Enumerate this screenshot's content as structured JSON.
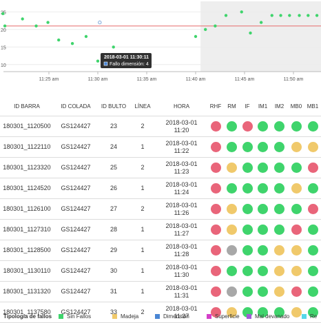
{
  "colors": {
    "green": "#3fd46c",
    "red": "#e9657a",
    "yellow": "#f0c96b",
    "gray": "#a8a8a8",
    "blue": "#4a86d4",
    "magenta": "#d43fc9",
    "purple": "#a25ad8",
    "cyan": "#57d8e8",
    "threshold": "#e66a6a",
    "shade": "#eeeeee"
  },
  "chart_data": {
    "type": "scatter",
    "x_ticks": [
      "11:25 am",
      "11:30 am",
      "11:35 am",
      "11:40 am",
      "11:45 am",
      "11:50 am"
    ],
    "y_ticks": [
      "25",
      "20",
      "15",
      "10"
    ],
    "y_range": [
      8,
      28
    ],
    "threshold": 21,
    "shaded_from_minute": 40.5,
    "points": [
      {
        "minute": 20.3,
        "value": 24.5
      },
      {
        "minute": 20.5,
        "value": 21
      },
      {
        "minute": 22.3,
        "value": 23
      },
      {
        "minute": 23.7,
        "value": 21
      },
      {
        "minute": 24.9,
        "value": 22
      },
      {
        "minute": 26.0,
        "value": 17
      },
      {
        "minute": 27.4,
        "value": 16
      },
      {
        "minute": 28.8,
        "value": 18
      },
      {
        "minute": 30.2,
        "value": 22,
        "hollow": true
      },
      {
        "minute": 31.6,
        "value": 15
      },
      {
        "minute": 30.0,
        "value": 11
      },
      {
        "minute": 40.0,
        "value": 18
      },
      {
        "minute": 41.0,
        "value": 20
      },
      {
        "minute": 42.0,
        "value": 21
      },
      {
        "minute": 43.1,
        "value": 24
      },
      {
        "minute": 44.7,
        "value": 25
      },
      {
        "minute": 45.6,
        "value": 19
      },
      {
        "minute": 46.7,
        "value": 22
      },
      {
        "minute": 47.8,
        "value": 24
      },
      {
        "minute": 48.7,
        "value": 24
      },
      {
        "minute": 49.6,
        "value": 24
      },
      {
        "minute": 50.6,
        "value": 24
      },
      {
        "minute": 51.5,
        "value": 24
      },
      {
        "minute": 52.4,
        "value": 24
      }
    ],
    "tooltip": {
      "title": "2018-03-01 11:30:11",
      "label": "Fallo dimensión: 4"
    }
  },
  "table": {
    "headers": [
      "ID BARRA",
      "ID COLADA",
      "ID BULTO",
      "LÍNEA",
      "HORA",
      "RHF",
      "RM",
      "IF",
      "IM1",
      "IM2",
      "MB0",
      "MB1"
    ],
    "rows": [
      {
        "barra": "180301_1120500",
        "colada": "GS124427",
        "bulto": "23",
        "linea": "2",
        "fecha": "2018-03-01",
        "hora": "11:20",
        "status": [
          "red",
          "green",
          "red",
          "green",
          "green",
          "green",
          "green"
        ]
      },
      {
        "barra": "180301_1122110",
        "colada": "GS124427",
        "bulto": "24",
        "linea": "1",
        "fecha": "2018-03-01",
        "hora": "11:22",
        "status": [
          "red",
          "green",
          "green",
          "green",
          "green",
          "yellow",
          "yellow"
        ]
      },
      {
        "barra": "180301_1123320",
        "colada": "GS124427",
        "bulto": "25",
        "linea": "2",
        "fecha": "2018-03-01",
        "hora": "11:23",
        "status": [
          "red",
          "yellow",
          "green",
          "green",
          "green",
          "green",
          "red"
        ]
      },
      {
        "barra": "180301_1124520",
        "colada": "GS124427",
        "bulto": "26",
        "linea": "1",
        "fecha": "2018-03-01",
        "hora": "11:24",
        "status": [
          "red",
          "green",
          "green",
          "green",
          "green",
          "yellow",
          "green"
        ]
      },
      {
        "barra": "180301_1126100",
        "colada": "GS124427",
        "bulto": "27",
        "linea": "2",
        "fecha": "2018-03-01",
        "hora": "11:26",
        "status": [
          "red",
          "yellow",
          "green",
          "green",
          "green",
          "green",
          "red"
        ]
      },
      {
        "barra": "180301_1127310",
        "colada": "GS124427",
        "bulto": "28",
        "linea": "1",
        "fecha": "2018-03-01",
        "hora": "11:27",
        "status": [
          "red",
          "yellow",
          "green",
          "green",
          "green",
          "red",
          "green"
        ]
      },
      {
        "barra": "180301_1128500",
        "colada": "GS124427",
        "bulto": "29",
        "linea": "1",
        "fecha": "2018-03-01",
        "hora": "11:28",
        "status": [
          "red",
          "gray",
          "green",
          "green",
          "yellow",
          "yellow",
          "green"
        ]
      },
      {
        "barra": "180301_1130110",
        "colada": "GS124427",
        "bulto": "30",
        "linea": "1",
        "fecha": "2018-03-01",
        "hora": "11:30",
        "status": [
          "red",
          "green",
          "green",
          "green",
          "yellow",
          "yellow",
          "green"
        ]
      },
      {
        "barra": "180301_1131320",
        "colada": "GS124427",
        "bulto": "31",
        "linea": "1",
        "fecha": "2018-03-01",
        "hora": "11:31",
        "status": [
          "red",
          "gray",
          "green",
          "green",
          "yellow",
          "red",
          "green"
        ]
      },
      {
        "barra": "180301_1137580",
        "colada": "GS124427",
        "bulto": "33",
        "linea": "2",
        "fecha": "2018-03-01",
        "hora": "11:37",
        "status": [
          "red",
          "yellow",
          "green",
          "green",
          "green",
          "yellow",
          "green"
        ]
      }
    ]
  },
  "legend": {
    "title": "Tipología de fallos",
    "items": [
      {
        "label": "Sin Fallos",
        "color": "green"
      },
      {
        "label": "Madeja",
        "color": "yellow"
      },
      {
        "label": "Dimensión",
        "color": "blue"
      },
      {
        "label": "Superficie",
        "color": "magenta"
      },
      {
        "label": "Mal devanado",
        "color": "purple"
      },
      {
        "label": "Re",
        "color": "cyan"
      }
    ]
  }
}
